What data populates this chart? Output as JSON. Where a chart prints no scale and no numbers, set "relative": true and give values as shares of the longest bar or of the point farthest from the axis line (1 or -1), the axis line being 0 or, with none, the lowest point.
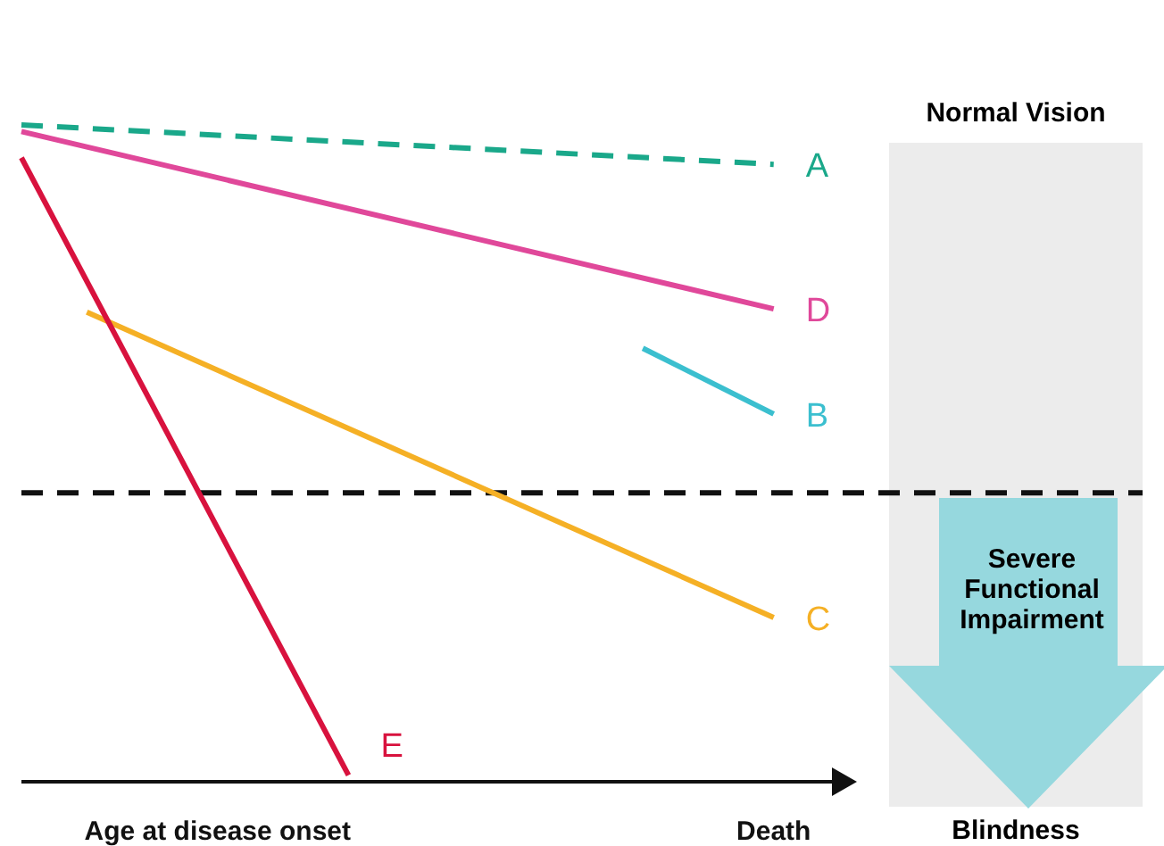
{
  "chart_data": {
    "type": "line",
    "relative": true,
    "categories": [
      null,
      null,
      null,
      null,
      null,
      null,
      "Age at disease onset",
      null,
      null,
      null,
      null,
      null,
      null,
      null,
      null,
      null,
      null,
      null,
      null,
      null,
      null,
      null,
      null,
      "Death",
      null,
      null
    ],
    "series": [
      {
        "name": "A",
        "color": "#1aa88a",
        "line_style": "dashed",
        "values": [
          1.0,
          null,
          null,
          null,
          null,
          null,
          null,
          null,
          null,
          null,
          null,
          null,
          null,
          null,
          null,
          null,
          null,
          null,
          null,
          null,
          null,
          null,
          null,
          0.94,
          null,
          null
        ]
      },
      {
        "name": "D",
        "color": "#e0489a",
        "values": [
          0.99,
          null,
          null,
          null,
          null,
          null,
          null,
          null,
          null,
          null,
          null,
          null,
          null,
          null,
          null,
          null,
          null,
          null,
          null,
          null,
          null,
          null,
          null,
          0.72,
          null,
          null
        ]
      },
      {
        "name": "B",
        "color": "#3bbfcf",
        "values": [
          null,
          null,
          null,
          null,
          null,
          null,
          null,
          null,
          null,
          null,
          null,
          null,
          null,
          null,
          null,
          null,
          null,
          null,
          null,
          0.66,
          null,
          null,
          null,
          0.56,
          null,
          null
        ]
      },
      {
        "name": "C",
        "color": "#f5b025",
        "values": [
          null,
          null,
          0.715,
          null,
          null,
          null,
          null,
          null,
          null,
          null,
          null,
          null,
          null,
          null,
          null,
          null,
          null,
          null,
          null,
          null,
          null,
          null,
          null,
          0.25,
          null,
          null
        ]
      },
      {
        "name": "E",
        "color": "#d8123e",
        "values": [
          0.95,
          null,
          null,
          null,
          null,
          null,
          null,
          null,
          null,
          null,
          0.01,
          null,
          null,
          null,
          null,
          null,
          null,
          null,
          null,
          null,
          null,
          null,
          null,
          null,
          null,
          null
        ]
      }
    ],
    "ref_lines": [
      {
        "axis": "y",
        "value": 0.44,
        "color": "#111111",
        "line_style": "dashed"
      }
    ],
    "annotations": [
      "Normal Vision",
      "Severe Functional Impairment",
      "Blindness"
    ],
    "marker": "none"
  }
}
